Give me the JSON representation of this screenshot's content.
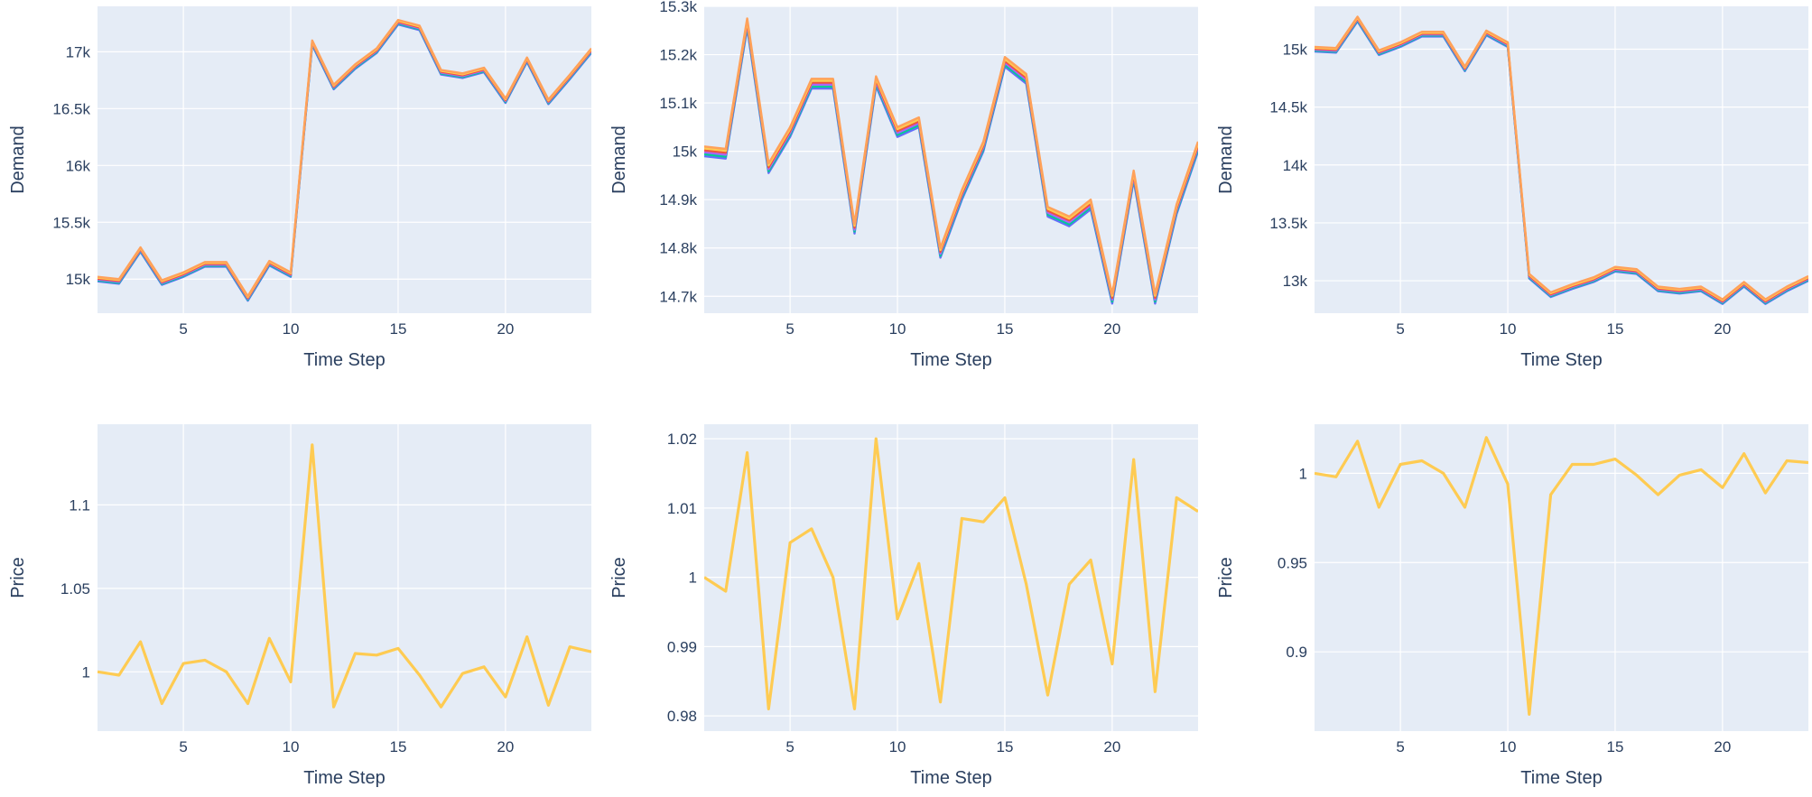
{
  "colors": {
    "plot_bg": "#e5ecf6",
    "grid": "#ffffff",
    "axis_text": "#2a3f5f",
    "demand_series": [
      "#636efa",
      "#00cc96",
      "#ab63fa",
      "#ef553b",
      "#fecb52",
      "#ffa15a"
    ],
    "price_series": "#fecb52"
  },
  "chart_data": [
    {
      "type": "line",
      "panel": "top-left",
      "xlabel": "Time Step",
      "ylabel": "Demand",
      "xlim": [
        1,
        24
      ],
      "ylim": [
        14700,
        17400
      ],
      "xticks": [
        5,
        10,
        15,
        20
      ],
      "yticks": [
        15000,
        15500,
        16000,
        16500,
        17000
      ],
      "ytick_labels": [
        "15k",
        "15.5k",
        "16k",
        "16.5k",
        "17k"
      ],
      "grid": true,
      "x": [
        1,
        2,
        3,
        4,
        5,
        6,
        7,
        8,
        9,
        10,
        11,
        12,
        13,
        14,
        15,
        16,
        17,
        18,
        19,
        20,
        21,
        22,
        23,
        24
      ],
      "series": [
        {
          "values": [
            15000,
            14980,
            15260,
            14970,
            15040,
            15130,
            15130,
            14830,
            15140,
            15040,
            17080,
            16690,
            16870,
            17010,
            17260,
            17210,
            16820,
            16790,
            16840,
            16570,
            16930,
            16560,
            16780,
            17010
          ]
        }
      ],
      "band_offsets": [
        -20,
        -12,
        -4,
        4,
        12,
        20
      ]
    },
    {
      "type": "line",
      "panel": "top-middle",
      "xlabel": "Time Step",
      "ylabel": "Demand",
      "xlim": [
        1,
        24
      ],
      "ylim": [
        14665,
        15300
      ],
      "xticks": [
        5,
        10,
        15,
        20
      ],
      "yticks": [
        14700,
        14800,
        14900,
        15000,
        15100,
        15200,
        15300
      ],
      "ytick_labels": [
        "14.7k",
        "14.8k",
        "14.9k",
        "15k",
        "15.1k",
        "15.2k",
        "15.3k"
      ],
      "grid": true,
      "x": [
        1,
        2,
        3,
        4,
        5,
        6,
        7,
        8,
        9,
        10,
        11,
        12,
        13,
        14,
        15,
        16,
        17,
        18,
        19,
        20,
        21,
        22,
        23,
        24
      ],
      "series": [
        {
          "values": [
            15000,
            14995,
            15265,
            14965,
            15040,
            15140,
            15140,
            14840,
            15145,
            15040,
            15060,
            14790,
            14910,
            15010,
            15185,
            15150,
            14875,
            14855,
            14890,
            14695,
            14950,
            14695,
            14880,
            15010
          ]
        }
      ],
      "band_offsets": [
        -10,
        -6,
        -2,
        2,
        6,
        10
      ]
    },
    {
      "type": "line",
      "panel": "top-right",
      "xlabel": "Time Step",
      "ylabel": "Demand",
      "xlim": [
        1,
        24
      ],
      "ylim": [
        12720,
        15370
      ],
      "xticks": [
        5,
        10,
        15,
        20
      ],
      "yticks": [
        13000,
        13500,
        14000,
        14500,
        15000
      ],
      "ytick_labels": [
        "13k",
        "13.5k",
        "14k",
        "14.5k",
        "15k"
      ],
      "grid": true,
      "x": [
        1,
        2,
        3,
        4,
        5,
        6,
        7,
        8,
        9,
        10,
        11,
        12,
        13,
        14,
        15,
        16,
        17,
        18,
        19,
        20,
        21,
        22,
        23,
        24
      ],
      "series": [
        {
          "values": [
            15000,
            14990,
            15260,
            14970,
            15040,
            15130,
            15130,
            14830,
            15140,
            15040,
            13040,
            12880,
            12950,
            13010,
            13100,
            13080,
            12930,
            12910,
            12930,
            12820,
            12970,
            12820,
            12930,
            13020
          ]
        }
      ],
      "band_offsets": [
        -20,
        -12,
        -4,
        4,
        12,
        20
      ]
    },
    {
      "type": "line",
      "panel": "bottom-left",
      "xlabel": "Time Step",
      "ylabel": "Price",
      "xlim": [
        1,
        24
      ],
      "ylim": [
        0.9645,
        1.1483
      ],
      "xticks": [
        5,
        10,
        15,
        20
      ],
      "yticks": [
        1,
        1.05,
        1.1
      ],
      "ytick_labels": [
        "1",
        "1.05",
        "1.1"
      ],
      "grid": true,
      "x": [
        1,
        2,
        3,
        4,
        5,
        6,
        7,
        8,
        9,
        10,
        11,
        12,
        13,
        14,
        15,
        16,
        17,
        18,
        19,
        20,
        21,
        22,
        23,
        24
      ],
      "series": [
        {
          "values": [
            1.0,
            0.998,
            1.018,
            0.981,
            1.005,
            1.007,
            1.0,
            0.981,
            1.02,
            0.994,
            1.136,
            0.979,
            1.011,
            1.01,
            1.014,
            0.998,
            0.979,
            0.999,
            1.003,
            0.985,
            1.021,
            0.98,
            1.015,
            1.012
          ]
        }
      ]
    },
    {
      "type": "line",
      "panel": "bottom-middle",
      "xlabel": "Time Step",
      "ylabel": "Price",
      "xlim": [
        1,
        24
      ],
      "ylim": [
        0.9778,
        1.0221
      ],
      "xticks": [
        5,
        10,
        15,
        20
      ],
      "yticks": [
        0.98,
        0.99,
        1,
        1.01,
        1.02
      ],
      "ytick_labels": [
        "0.98",
        "0.99",
        "1",
        "1.01",
        "1.02"
      ],
      "grid": true,
      "x": [
        1,
        2,
        3,
        4,
        5,
        6,
        7,
        8,
        9,
        10,
        11,
        12,
        13,
        14,
        15,
        16,
        17,
        18,
        19,
        20,
        21,
        22,
        23,
        24
      ],
      "series": [
        {
          "values": [
            1.0,
            0.998,
            1.018,
            0.981,
            1.005,
            1.007,
            1.0,
            0.981,
            1.02,
            0.994,
            1.002,
            0.982,
            1.0085,
            1.008,
            1.0115,
            0.999,
            0.983,
            0.999,
            1.0025,
            0.9875,
            1.017,
            0.9835,
            1.0115,
            1.0095
          ]
        }
      ]
    },
    {
      "type": "line",
      "panel": "bottom-right",
      "xlabel": "Time Step",
      "ylabel": "Price",
      "xlim": [
        1,
        24
      ],
      "ylim": [
        0.8556,
        1.0275
      ],
      "xticks": [
        5,
        10,
        15,
        20
      ],
      "yticks": [
        0.9,
        0.95,
        1
      ],
      "ytick_labels": [
        "0.9",
        "0.95",
        "1"
      ],
      "grid": true,
      "x": [
        1,
        2,
        3,
        4,
        5,
        6,
        7,
        8,
        9,
        10,
        11,
        12,
        13,
        14,
        15,
        16,
        17,
        18,
        19,
        20,
        21,
        22,
        23,
        24
      ],
      "series": [
        {
          "values": [
            1.0,
            0.998,
            1.018,
            0.981,
            1.005,
            1.007,
            1.0,
            0.981,
            1.02,
            0.994,
            0.865,
            0.988,
            1.005,
            1.005,
            1.008,
            0.999,
            0.988,
            0.999,
            1.002,
            0.992,
            1.011,
            0.989,
            1.007,
            1.006
          ]
        }
      ]
    }
  ]
}
